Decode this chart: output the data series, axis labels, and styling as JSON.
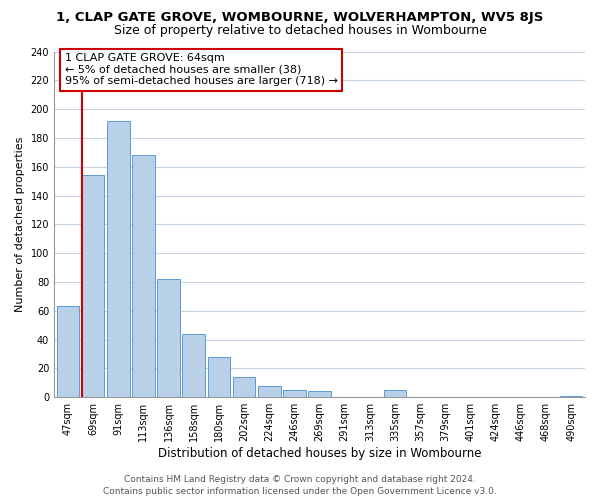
{
  "title": "1, CLAP GATE GROVE, WOMBOURNE, WOLVERHAMPTON, WV5 8JS",
  "subtitle": "Size of property relative to detached houses in Wombourne",
  "xlabel": "Distribution of detached houses by size in Wombourne",
  "ylabel": "Number of detached properties",
  "bar_labels": [
    "47sqm",
    "69sqm",
    "91sqm",
    "113sqm",
    "136sqm",
    "158sqm",
    "180sqm",
    "202sqm",
    "224sqm",
    "246sqm",
    "269sqm",
    "291sqm",
    "313sqm",
    "335sqm",
    "357sqm",
    "379sqm",
    "401sqm",
    "424sqm",
    "446sqm",
    "468sqm",
    "490sqm"
  ],
  "bar_values": [
    63,
    154,
    192,
    168,
    82,
    44,
    28,
    14,
    8,
    5,
    4,
    0,
    0,
    5,
    0,
    0,
    0,
    0,
    0,
    0,
    1
  ],
  "bar_color": "#b8d0e8",
  "bar_edge_color": "#5b9bd5",
  "vline_color": "#cc0000",
  "vline_x_index": 1,
  "ylim": [
    0,
    240
  ],
  "yticks": [
    0,
    20,
    40,
    60,
    80,
    100,
    120,
    140,
    160,
    180,
    200,
    220,
    240
  ],
  "annotation_line1": "1 CLAP GATE GROVE: 64sqm",
  "annotation_line2": "← 5% of detached houses are smaller (38)",
  "annotation_line3": "95% of semi-detached houses are larger (718) →",
  "ann_box_edge_color": "#cc0000",
  "footer_line1": "Contains HM Land Registry data © Crown copyright and database right 2024.",
  "footer_line2": "Contains public sector information licensed under the Open Government Licence v3.0.",
  "bg_color": "#ffffff",
  "grid_color": "#c8d4e4",
  "title_fontsize": 9.5,
  "subtitle_fontsize": 9,
  "xlabel_fontsize": 8.5,
  "ylabel_fontsize": 8,
  "annotation_fontsize": 8,
  "tick_fontsize": 7,
  "footer_fontsize": 6.5
}
